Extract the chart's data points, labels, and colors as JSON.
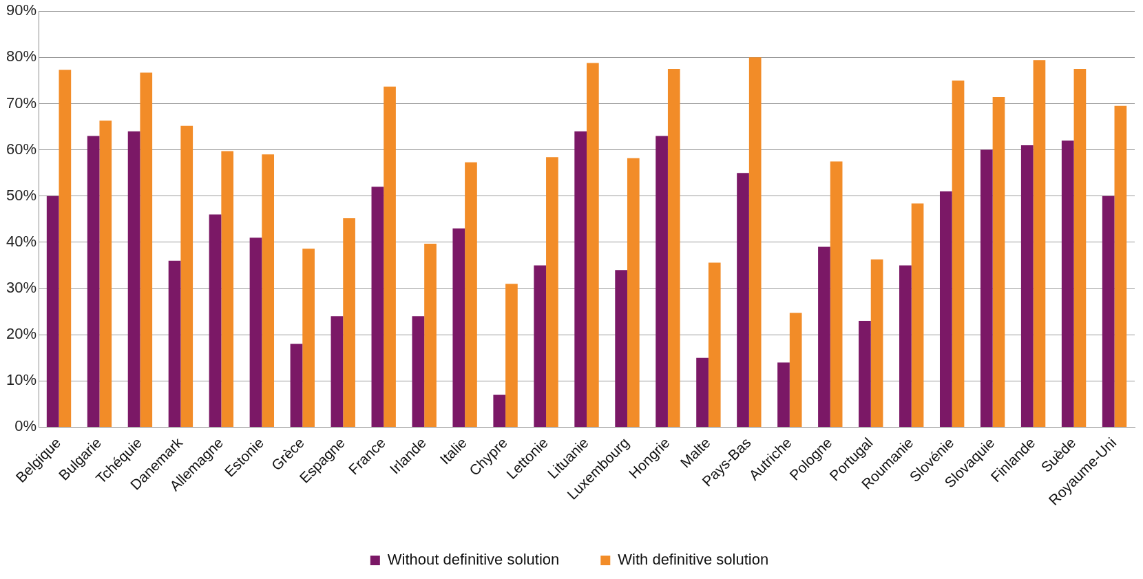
{
  "chart_data": {
    "type": "bar",
    "categories": [
      "Belgique",
      "Bulgarie",
      "Tchéquie",
      "Danemark",
      "Allemagne",
      "Estonie",
      "Grèce",
      "Espagne",
      "France",
      "Irlande",
      "Italie",
      "Chypre",
      "Lettonie",
      "Lituanie",
      "Luxembourg",
      "Hongrie",
      "Malte",
      "Pays-Bas",
      "Autriche",
      "Pologne",
      "Portugal",
      "Roumanie",
      "Slovénie",
      "Slovaquie",
      "Finlande",
      "Suède",
      "Royaume-Uni"
    ],
    "series": [
      {
        "name": "Without definitive solution",
        "color": "#7b1866",
        "values": [
          50,
          63,
          64,
          36,
          46,
          41,
          18,
          24,
          52,
          24,
          43,
          7,
          35,
          64,
          34,
          63,
          15,
          55,
          14,
          39,
          23,
          35,
          51,
          60,
          61,
          62,
          50
        ]
      },
      {
        "name": "With definitive solution",
        "color": "#f28c28",
        "values": [
          77.3,
          66.3,
          76.7,
          65.2,
          59.7,
          59,
          38.6,
          45.2,
          73.7,
          39.7,
          57.3,
          31,
          58.4,
          78.8,
          58.2,
          77.5,
          35.6,
          80,
          24.7,
          57.5,
          36.3,
          48.4,
          75,
          71.4,
          79.4,
          77.5,
          69.5
        ]
      }
    ],
    "ylim": [
      0,
      90
    ],
    "yticks": [
      {
        "value": 0,
        "label": "0%"
      },
      {
        "value": 10,
        "label": "10%"
      },
      {
        "value": 20,
        "label": "20%"
      },
      {
        "value": 30,
        "label": "30%"
      },
      {
        "value": 40,
        "label": "40%"
      },
      {
        "value": 50,
        "label": "50%"
      },
      {
        "value": 60,
        "label": "60%"
      },
      {
        "value": 70,
        "label": "70%"
      },
      {
        "value": 80,
        "label": "80%"
      },
      {
        "value": 90,
        "label": "90%"
      }
    ],
    "grid": "y",
    "legend": "bottom"
  }
}
